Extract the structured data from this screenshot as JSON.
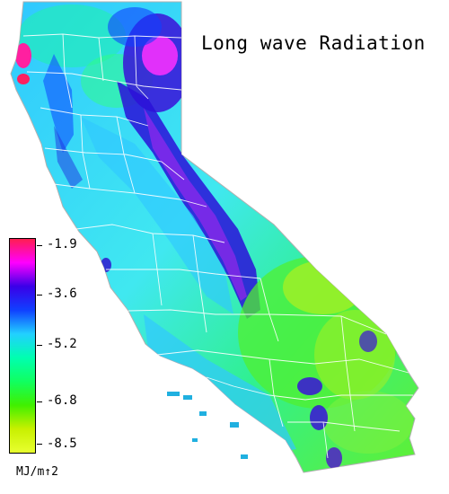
{
  "title": "Long wave Radiation",
  "legend": {
    "ticks": [
      "-1.9",
      "-3.6",
      "-5.2",
      "-6.8",
      "-8.5"
    ],
    "units": "MJ/m↑2",
    "colors": [
      "#ff1e50",
      "#ff00ff",
      "#3a00e8",
      "#1040ff",
      "#22d0ff",
      "#00ffb0",
      "#10ff60",
      "#40f000",
      "#c8f000",
      "#e8ff30"
    ]
  },
  "map": {
    "region": "California",
    "colors": {
      "coast_red": "#ff2060",
      "magenta": "#ff20ff",
      "purple": "#3a10d8",
      "blue": "#1060ff",
      "cyan": "#30c8ff",
      "aqua": "#20f0d0",
      "green": "#30ff60",
      "yellow_green": "#a0f020",
      "border": "#ffffff"
    }
  }
}
